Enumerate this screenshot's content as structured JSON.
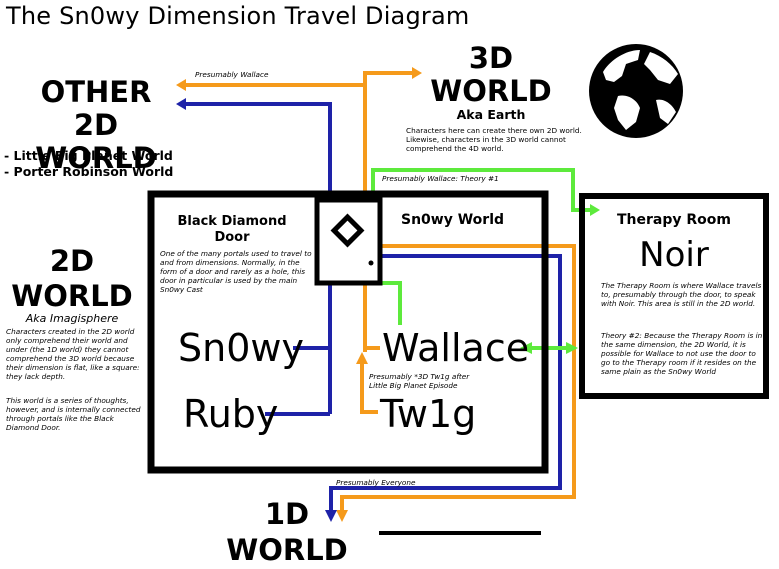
{
  "title": "The Sn0wy Dimension Travel Diagram",
  "colors": {
    "orange": "#f59a1b",
    "blue": "#1e22a8",
    "green": "#5dea3c",
    "black": "#000000"
  },
  "other2d": {
    "title_line1": "OTHER 2D",
    "title_line2": "WORLD",
    "items": [
      "- Little Big Planet World",
      "- Porter Robinson World"
    ]
  },
  "world3d": {
    "title_line1": "3D",
    "title_line2": "WORLD",
    "aka": "Aka Earth",
    "description": "Characters here can create there own 2D world. Likewise, characters in the 3D world cannot comprehend the 4D world."
  },
  "world2d": {
    "title_line1": "2D",
    "title_line2": "WORLD",
    "aka": "Aka Imagisphere",
    "description1": "Characters created in the 2D world only comprehend their world and under (the 1D world) they cannot comprehend the 3D world because their dimension is flat, like a square: they lack depth.",
    "description2": "This world is a series of thoughts, however, and is internally connected through portals like the Black Diamond Door."
  },
  "black_diamond": {
    "title_line1": "Black Diamond",
    "title_line2": "Door",
    "description": "One of the many portals used to travel to and from dimensions. Normally, in the form of a door and rarely as a hole, this door in particular is used by the main Sn0wy Cast"
  },
  "snowy_world": {
    "label": "Sn0wy World"
  },
  "characters": {
    "snowy": "Sn0wy",
    "ruby": "Ruby",
    "wallace": "Wallace",
    "twig": "Tw1g"
  },
  "twig_note": "Presumably *3D Tw1g after Little Big Planet Episode",
  "therapy": {
    "title": "Therapy Room",
    "name": "Noir",
    "description": "The Therapy Room is where Wallace travels to, presumably through the door, to speak with Noir. This area is still in the 2D world.",
    "theory2": "Theory #2: Because the Therapy Room is in the same dimension, the 2D World, it is possible for Wallace to not use the door to go to the Therapy room if it resides on the same plain as the Sn0wy World"
  },
  "labels": {
    "presumably_wallace": "Presumably Wallace",
    "theory1": "Presumably Wallace: Theory #1",
    "presumably_everyone": "Presumably Everyone"
  },
  "world1d": {
    "title_line1": "1D",
    "title_line2": "WORLD"
  }
}
